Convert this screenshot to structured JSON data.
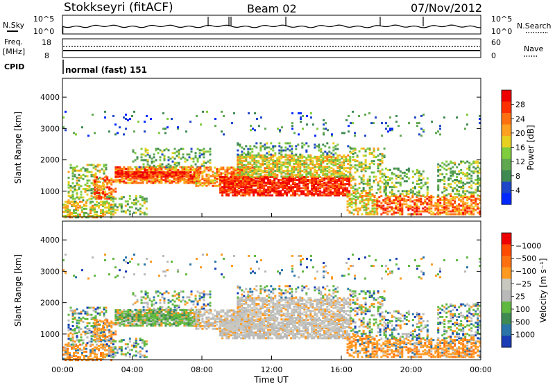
{
  "header": {
    "station": "Stokkseyri (fitACF)",
    "beam": "Beam 02",
    "date": "07/Nov/2012"
  },
  "noise_panel": {
    "left_label": "N.Sky",
    "right_label": "N.Search",
    "ticks": [
      "10^5",
      "10^0"
    ]
  },
  "freq_panel": {
    "left_label": "Freq.",
    "left_unit": "[MHz]",
    "left_ticks": [
      "18",
      "8"
    ],
    "right_label": "Nave",
    "right_ticks": [
      "60",
      "0"
    ]
  },
  "cpid_panel": {
    "label": "CPID",
    "text": "normal (fast) 151"
  },
  "chart_data": [
    {
      "type": "heatmap",
      "name": "power",
      "ylabel": "Slant Range [km]",
      "xlabel": "",
      "yticks": [
        1000,
        2000,
        3000,
        4000
      ],
      "ylim": [
        180,
        4600
      ],
      "colorbar": {
        "label": "Power [dB]",
        "ticks": [
          "4",
          "8",
          "12",
          "16",
          "20",
          "24",
          "28"
        ],
        "colors": [
          "#0028ff",
          "#1e46c8",
          "#3f8a52",
          "#5fa850",
          "#7fcc3c",
          "#e8d020",
          "#ffa020",
          "#ff7010",
          "#ff3000",
          "#ee0000"
        ]
      }
    },
    {
      "type": "heatmap",
      "name": "velocity",
      "ylabel": "Slant Range [km]",
      "xlabel": "Time UT",
      "yticks": [
        1000,
        2000,
        3000,
        4000
      ],
      "ylim": [
        180,
        4600
      ],
      "xticks": [
        "00:00",
        "04:00",
        "08:00",
        "12:00",
        "16:00",
        "20:00",
        "00:00"
      ],
      "colorbar": {
        "label": "Velocity [m s⁻¹]",
        "ticks": [
          "1000",
          "500",
          "100",
          "25",
          "−25",
          "−100",
          "−500",
          "−1000"
        ],
        "colors": [
          "#1a3cb4",
          "#2a74a8",
          "#3f8a52",
          "#5fb840",
          "#b9b9b9",
          "#c8c8c0",
          "#ff9a20",
          "#ff7010",
          "#ff4a00",
          "#ee0000"
        ]
      }
    }
  ]
}
